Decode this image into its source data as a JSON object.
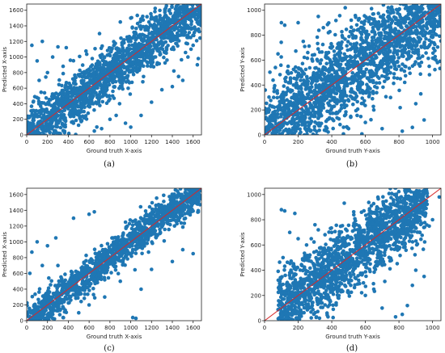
{
  "figure": {
    "colors": {
      "points": "#1f77b4",
      "diagonal": "#d62728",
      "axis": "#222222"
    }
  },
  "chart_data": [
    {
      "type": "scatter",
      "caption": "(a)",
      "xlabel": "Ground truth X-axis",
      "ylabel": "Predicted X-axis",
      "xlim": [
        0,
        1680
      ],
      "ylim": [
        0,
        1680
      ],
      "xticks": [
        0,
        200,
        400,
        600,
        800,
        1000,
        1200,
        1400,
        1600
      ],
      "yticks": [
        0,
        200,
        400,
        600,
        800,
        1000,
        1200,
        1400,
        1600
      ],
      "reference_line": "y = x",
      "band": {
        "x_min": 0,
        "x_max": 1680,
        "spread": 170,
        "count": 1800
      },
      "outliers": [
        [
          150,
          1200
        ],
        [
          100,
          950
        ],
        [
          250,
          1000
        ],
        [
          50,
          1150
        ],
        [
          300,
          1130
        ],
        [
          380,
          1120
        ],
        [
          1600,
          1150
        ],
        [
          1650,
          980
        ],
        [
          1550,
          1000
        ],
        [
          1640,
          900
        ],
        [
          1460,
          750
        ],
        [
          1500,
          700
        ],
        [
          800,
          200
        ],
        [
          860,
          250
        ],
        [
          950,
          150
        ],
        [
          720,
          80
        ],
        [
          1000,
          100
        ],
        [
          1200,
          420
        ],
        [
          650,
          50
        ],
        [
          550,
          300
        ],
        [
          1100,
          250
        ],
        [
          1300,
          580
        ],
        [
          1400,
          620
        ],
        [
          200,
          800
        ],
        [
          120,
          700
        ],
        [
          350,
          880
        ],
        [
          1580,
          1100
        ],
        [
          900,
          1450
        ],
        [
          700,
          1300
        ],
        [
          1000,
          1500
        ]
      ]
    },
    {
      "type": "scatter",
      "caption": "(b)",
      "xlabel": "Ground truth Y-axis",
      "ylabel": "Predicted Y-axis",
      "xlim": [
        0,
        1050
      ],
      "ylim": [
        0,
        1050
      ],
      "xticks": [
        0,
        200,
        400,
        600,
        800,
        1000
      ],
      "yticks": [
        0,
        200,
        400,
        600,
        800,
        1000
      ],
      "reference_line": "y = x",
      "band": {
        "x_min": 0,
        "x_max": 1050,
        "spread": 190,
        "count": 2200
      },
      "outliers": [
        [
          120,
          880
        ],
        [
          80,
          650
        ],
        [
          200,
          900
        ],
        [
          230,
          750
        ],
        [
          320,
          950
        ],
        [
          350,
          860
        ],
        [
          140,
          550
        ],
        [
          100,
          900
        ],
        [
          950,
          120
        ],
        [
          980,
          550
        ],
        [
          1020,
          600
        ],
        [
          900,
          250
        ],
        [
          700,
          50
        ],
        [
          820,
          30
        ],
        [
          880,
          60
        ],
        [
          600,
          100
        ],
        [
          650,
          200
        ],
        [
          500,
          50
        ],
        [
          750,
          300
        ],
        [
          1000,
          900
        ],
        [
          1030,
          1000
        ],
        [
          480,
          1020
        ],
        [
          380,
          820
        ]
      ]
    },
    {
      "type": "scatter",
      "caption": "(c)",
      "xlabel": "Ground truth X-axis",
      "ylabel": "Predicted X-axis",
      "xlim": [
        0,
        1680
      ],
      "ylim": [
        0,
        1680
      ],
      "xticks": [
        0,
        200,
        400,
        600,
        800,
        1000,
        1200,
        1400,
        1600
      ],
      "yticks": [
        0,
        200,
        400,
        600,
        800,
        1000,
        1200,
        1400,
        1600
      ],
      "reference_line": "y = x",
      "band": {
        "x_min": 0,
        "x_max": 1680,
        "spread": 110,
        "count": 1500
      },
      "outliers": [
        [
          100,
          1000
        ],
        [
          50,
          870
        ],
        [
          200,
          950
        ],
        [
          280,
          1050
        ],
        [
          450,
          1300
        ],
        [
          600,
          1350
        ],
        [
          650,
          1380
        ],
        [
          150,
          700
        ],
        [
          30,
          600
        ],
        [
          1450,
          1400
        ],
        [
          1500,
          1390
        ],
        [
          1550,
          1380
        ],
        [
          1600,
          1390
        ],
        [
          1650,
          1380
        ],
        [
          1400,
          1380
        ],
        [
          1350,
          1385
        ],
        [
          1300,
          1390
        ],
        [
          1250,
          1395
        ],
        [
          1100,
          400
        ],
        [
          1050,
          30
        ],
        [
          1020,
          40
        ],
        [
          1500,
          900
        ],
        [
          1600,
          850
        ],
        [
          1400,
          750
        ],
        [
          1200,
          650
        ],
        [
          900,
          500
        ],
        [
          750,
          300
        ],
        [
          600,
          200
        ],
        [
          500,
          100
        ],
        [
          350,
          40
        ],
        [
          1150,
          1350
        ],
        [
          950,
          1250
        ],
        [
          300,
          700
        ]
      ]
    },
    {
      "type": "scatter",
      "caption": "(d)",
      "xlabel": "Ground truth Y-axis",
      "ylabel": "Predicted Y-axis",
      "xlim": [
        0,
        1050
      ],
      "ylim": [
        0,
        1050
      ],
      "xticks": [
        0,
        200,
        400,
        600,
        800,
        1000
      ],
      "yticks": [
        0,
        200,
        400,
        600,
        800,
        1000
      ],
      "reference_line": "y = x",
      "band": {
        "x_min": 80,
        "x_max": 970,
        "spread": 140,
        "count": 1800
      },
      "outliers": [
        [
          100,
          880
        ],
        [
          120,
          870
        ],
        [
          150,
          700
        ],
        [
          200,
          650
        ],
        [
          180,
          850
        ],
        [
          300,
          760
        ],
        [
          320,
          720
        ],
        [
          400,
          700
        ],
        [
          250,
          600
        ],
        [
          110,
          500
        ],
        [
          700,
          100
        ],
        [
          820,
          50
        ],
        [
          850,
          120
        ],
        [
          900,
          400
        ],
        [
          950,
          350
        ],
        [
          880,
          280
        ],
        [
          600,
          200
        ],
        [
          650,
          250
        ],
        [
          500,
          220
        ],
        [
          560,
          320
        ],
        [
          980,
          750
        ],
        [
          1000,
          800
        ],
        [
          920,
          900
        ],
        [
          960,
          1040
        ],
        [
          1040,
          980
        ],
        [
          780,
          30
        ]
      ]
    }
  ]
}
